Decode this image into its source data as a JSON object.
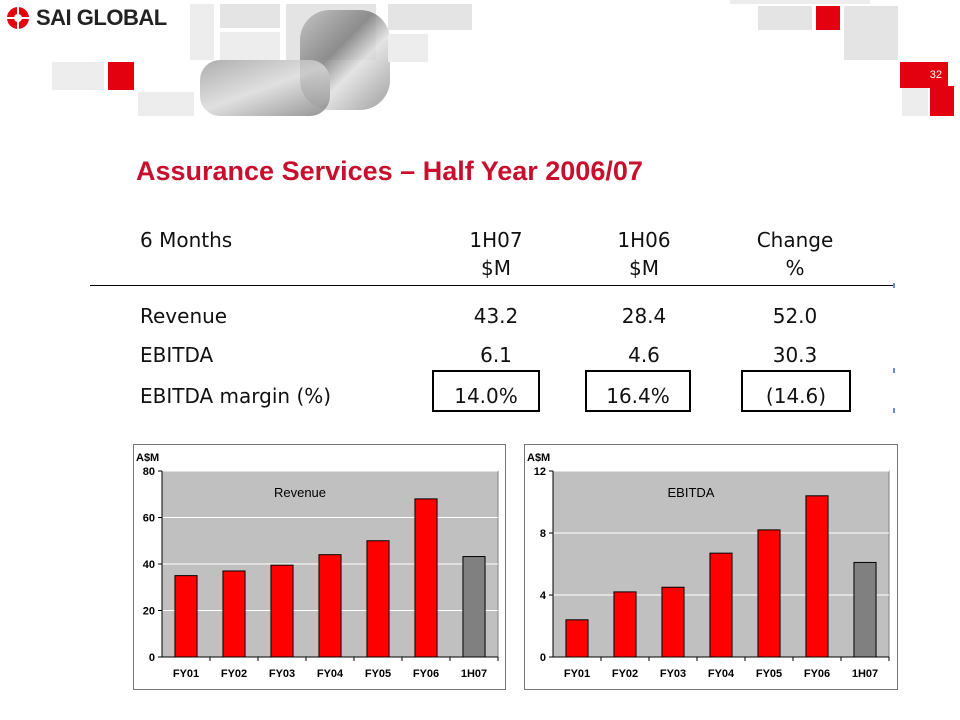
{
  "header": {
    "logo_text": "SAI GLOBAL",
    "slide_number": "32",
    "brand_red": "#e3000f"
  },
  "title": "Assurance Services – Half Year 2006/07",
  "table": {
    "header_row1": [
      "6 Months",
      "1H07",
      "1H06",
      "Change"
    ],
    "header_row2": [
      "",
      "$M",
      "$M",
      "%"
    ],
    "rows": [
      {
        "label": "Revenue",
        "h107": "43.2",
        "h106": "28.4",
        "change": "52.0"
      },
      {
        "label": "EBITDA",
        "h107": "6.1",
        "h106": "4.6",
        "change": "30.3"
      },
      {
        "label": "EBITDA margin (%)",
        "h107": "14.0%",
        "h106": "16.4%",
        "change": "(14.6)"
      }
    ]
  },
  "chart_data": [
    {
      "type": "bar",
      "title": "Revenue",
      "ylabel": "A$M",
      "categories": [
        "FY01",
        "FY02",
        "FY03",
        "FY04",
        "FY05",
        "FY06",
        "1H07"
      ],
      "values": [
        35,
        37,
        39.5,
        44,
        50,
        68,
        43.2
      ],
      "colors": [
        "#ff0000",
        "#ff0000",
        "#ff0000",
        "#ff0000",
        "#ff0000",
        "#ff0000",
        "#808080"
      ],
      "ylim": [
        0,
        80
      ],
      "yticks": [
        "0",
        "20",
        "40",
        "60",
        "80"
      ],
      "grid": true,
      "plot_bg": "#c0c0c0"
    },
    {
      "type": "bar",
      "title": "EBITDA",
      "ylabel": "A$M",
      "categories": [
        "FY01",
        "FY02",
        "FY03",
        "FY04",
        "FY05",
        "FY06",
        "1H07"
      ],
      "values": [
        2.4,
        4.2,
        4.5,
        6.7,
        8.2,
        10.4,
        6.1
      ],
      "colors": [
        "#ff0000",
        "#ff0000",
        "#ff0000",
        "#ff0000",
        "#ff0000",
        "#ff0000",
        "#808080"
      ],
      "ylim": [
        0,
        12
      ],
      "yticks": [
        "0",
        "4",
        "8",
        "12"
      ],
      "grid": true,
      "plot_bg": "#c0c0c0"
    }
  ]
}
